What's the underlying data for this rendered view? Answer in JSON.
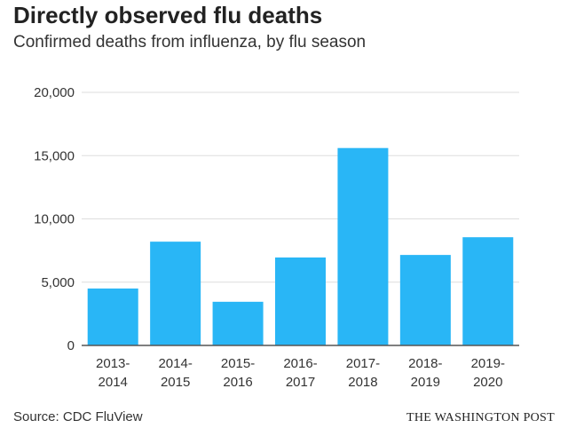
{
  "header": {
    "title": "Directly observed flu deaths",
    "subtitle": "Confirmed deaths from influenza, by flu season"
  },
  "footer": {
    "source": "Source: CDC FluView",
    "credit": "THE WASHINGTON POST"
  },
  "colors": {
    "bar": "#29b6f6",
    "grid": "#dddddd",
    "axis": "#555555"
  },
  "chart_data": {
    "type": "bar",
    "title": "Directly observed flu deaths",
    "subtitle": "Confirmed deaths from influenza, by flu season",
    "xlabel": "",
    "ylabel": "",
    "categories": [
      [
        "2013-",
        "2014"
      ],
      [
        "2014-",
        "2015"
      ],
      [
        "2015-",
        "2016"
      ],
      [
        "2016-",
        "2017"
      ],
      [
        "2017-",
        "2018"
      ],
      [
        "2018-",
        "2019"
      ],
      [
        "2019-",
        "2020"
      ]
    ],
    "values": [
      4500,
      8200,
      3450,
      6950,
      15600,
      7150,
      8550
    ],
    "ylim": [
      0,
      20000
    ],
    "yticks": [
      0,
      5000,
      10000,
      15000,
      20000
    ],
    "ytick_labels": [
      "0",
      "5,000",
      "10,000",
      "15,000",
      "20,000"
    ],
    "grid": true
  }
}
